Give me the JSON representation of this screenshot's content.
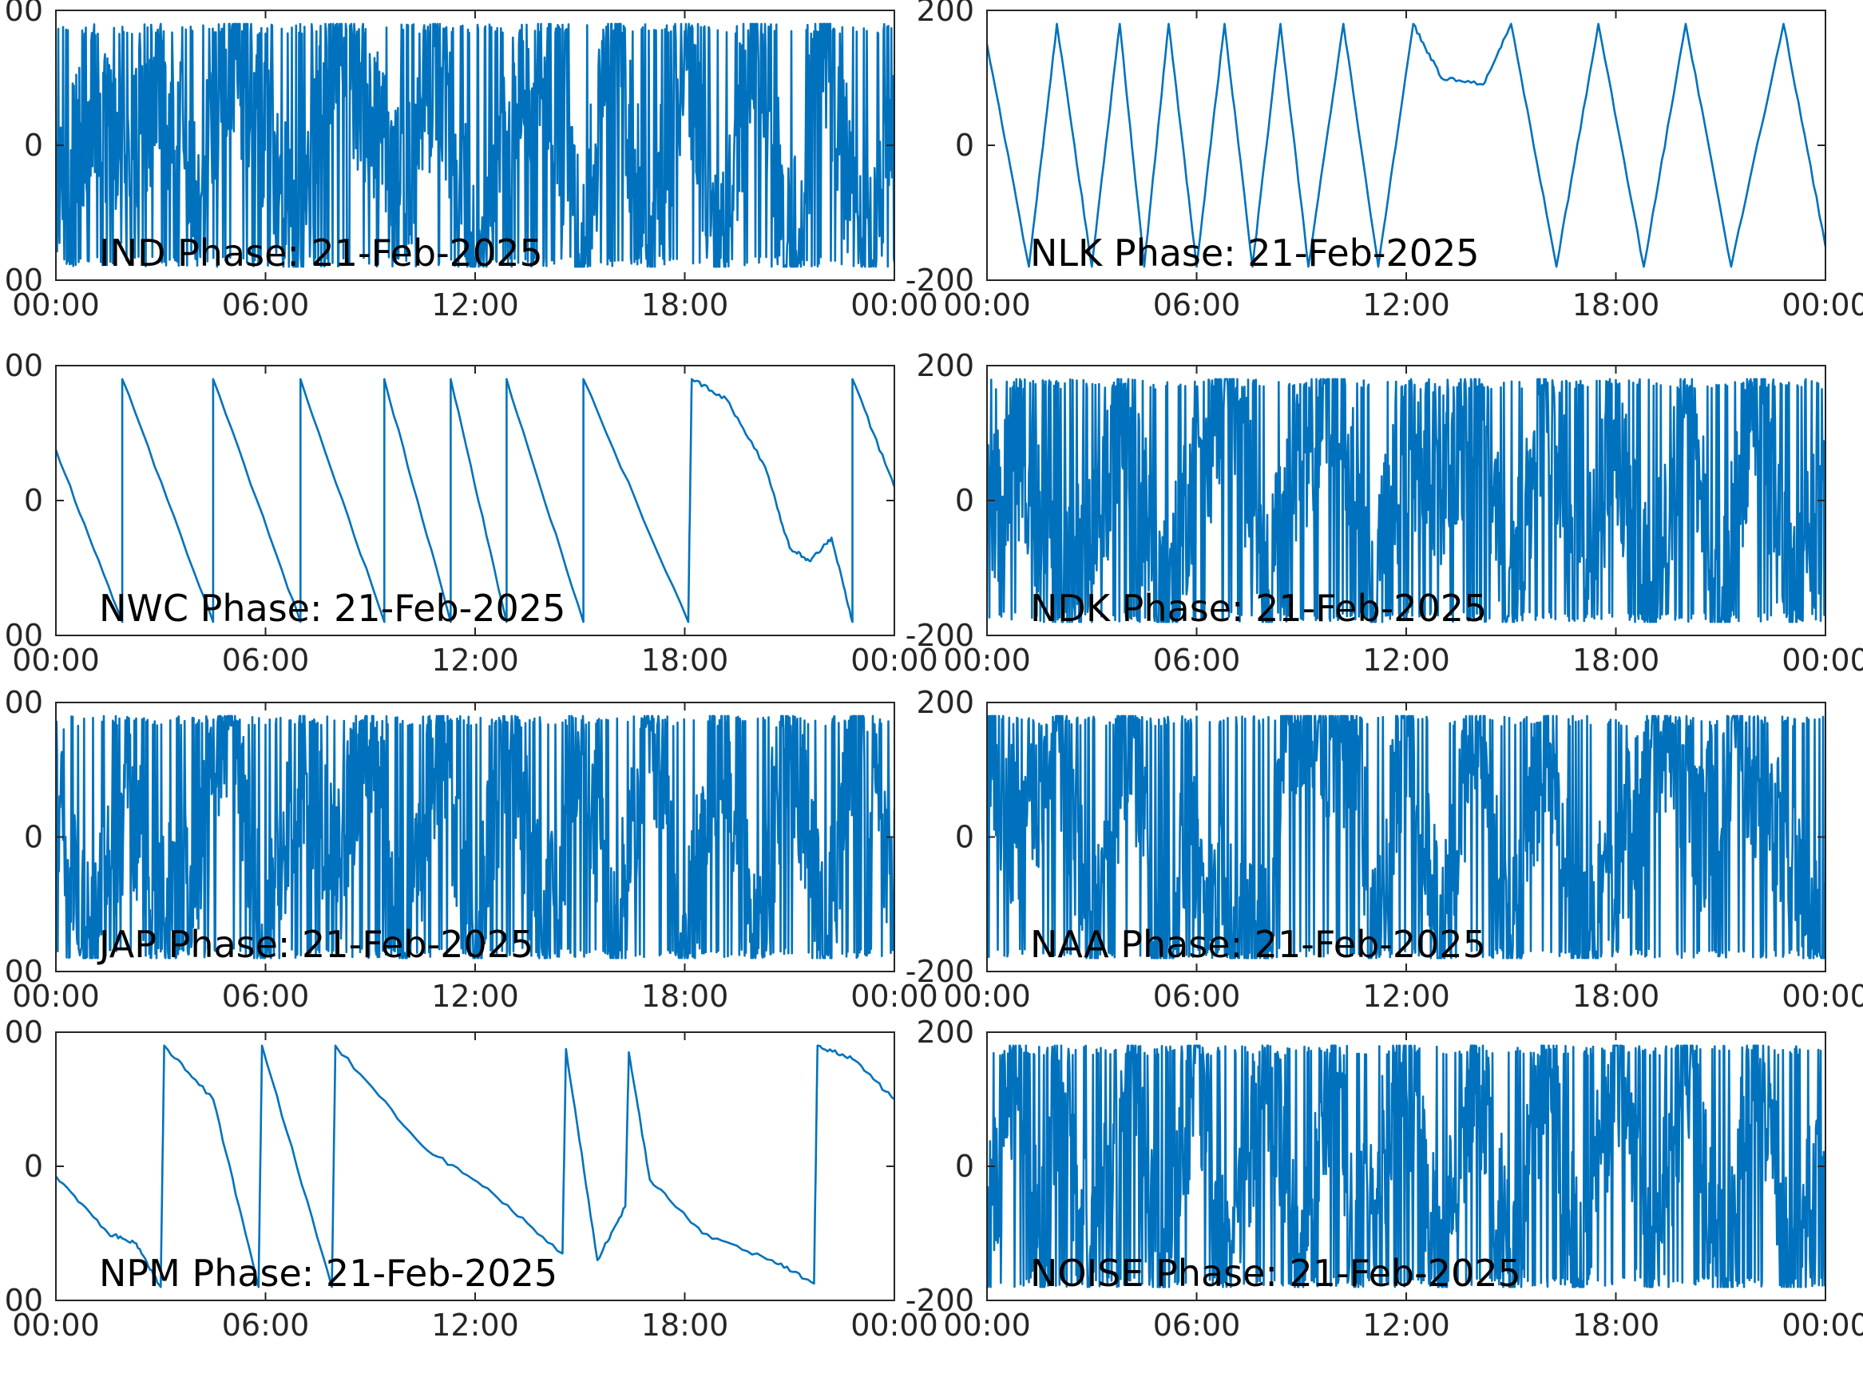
{
  "figure": {
    "line_color": "#0072BD",
    "axis_color": "#262626",
    "background": "#ffffff"
  },
  "chart_data": [
    {
      "type": "line",
      "title": "IND Phase: 21-Feb-2025",
      "x_tick_labels": [
        "00:00",
        "06:00",
        "12:00",
        "18:00",
        "00:00"
      ],
      "y_tick_labels": [
        "00",
        "0",
        "00"
      ],
      "xlim_hours": [
        0,
        24
      ],
      "ylim": [
        -200,
        200
      ],
      "series": [
        {
          "x_hours": [
            0,
            1,
            2,
            3,
            4,
            5,
            6,
            7,
            8,
            9,
            10,
            11,
            12,
            13,
            14,
            15,
            16,
            17,
            18,
            19,
            20,
            21,
            22,
            23,
            24
          ],
          "y": [
            -120,
            60,
            -40,
            100,
            -80,
            140,
            20,
            -150,
            170,
            40,
            -60,
            120,
            -170,
            30,
            150,
            -160,
            175,
            -175,
            160,
            -170,
            175,
            -165,
            170,
            -150,
            -20
          ]
        }
      ],
      "pattern": "noisy"
    },
    {
      "type": "line",
      "title": "NLK Phase: 21-Feb-2025",
      "x_tick_labels": [
        "00:00",
        "06:00",
        "12:00",
        "18:00",
        "00:00"
      ],
      "y_tick_labels": [
        "200",
        "0",
        "-200"
      ],
      "xlim_hours": [
        0,
        24
      ],
      "ylim": [
        -200,
        200
      ],
      "series": [
        {
          "x_hours": [
            0,
            1.2,
            2.0,
            3.0,
            3.8,
            4.5,
            5.2,
            6.0,
            6.8,
            7.6,
            8.4,
            9.2,
            10.2,
            11.2,
            12.2,
            13.0,
            14.2,
            15.0,
            16.3,
            17.5,
            18.8,
            20.0,
            21.3,
            22.8,
            24
          ],
          "y": [
            150,
            -180,
            180,
            -180,
            180,
            -180,
            180,
            -180,
            180,
            -180,
            180,
            -180,
            180,
            -180,
            180,
            100,
            90,
            180,
            -180,
            180,
            -180,
            180,
            -180,
            180,
            -150
          ]
        }
      ],
      "pattern": "sawtooth"
    },
    {
      "type": "line",
      "title": "NWC Phase: 21-Feb-2025",
      "x_tick_labels": [
        "00:00",
        "06:00",
        "12:00",
        "18:00",
        "00:00"
      ],
      "y_tick_labels": [
        "00",
        "0",
        "00"
      ],
      "xlim_hours": [
        0,
        24
      ],
      "ylim": [
        -200,
        200
      ],
      "series": [
        {
          "x_hours": [
            0,
            1.9,
            1.9,
            4.5,
            4.5,
            7.0,
            7.0,
            9.4,
            9.4,
            11.3,
            11.3,
            12.9,
            12.9,
            15.1,
            15.1,
            18.1,
            18.2,
            19.2,
            20.3,
            21.0,
            21.6,
            22.2,
            22.8,
            22.8,
            24
          ],
          "y": [
            75,
            -180,
            180,
            -180,
            180,
            -180,
            180,
            -180,
            180,
            -180,
            180,
            -180,
            180,
            -180,
            180,
            -180,
            180,
            150,
            50,
            -70,
            -90,
            -55,
            -180,
            180,
            20
          ]
        }
      ],
      "pattern": "sawtooth"
    },
    {
      "type": "line",
      "title": "NDK Phase: 21-Feb-2025",
      "x_tick_labels": [
        "00:00",
        "06:00",
        "12:00",
        "18:00",
        "00:00"
      ],
      "y_tick_labels": [
        "200",
        "0",
        "-200"
      ],
      "xlim_hours": [
        0,
        24
      ],
      "ylim": [
        -200,
        200
      ],
      "series": [
        {
          "x_hours": [
            0,
            1,
            2,
            3,
            4,
            5,
            6,
            7,
            8,
            9,
            10,
            11,
            12,
            13,
            14,
            15,
            16,
            17,
            18,
            19,
            20,
            21,
            22,
            23,
            24
          ],
          "y": [
            -30,
            80,
            -150,
            -60,
            120,
            -170,
            40,
            170,
            -140,
            60,
            170,
            -170,
            100,
            30,
            140,
            -160,
            170,
            -120,
            90,
            -170,
            175,
            -175,
            170,
            -150,
            20
          ]
        }
      ],
      "pattern": "noisy"
    },
    {
      "type": "line",
      "title": "JAP Phase: 21-Feb-2025",
      "x_tick_labels": [
        "00:00",
        "06:00",
        "12:00",
        "18:00",
        "00:00"
      ],
      "y_tick_labels": [
        "00",
        "0",
        "00"
      ],
      "xlim_hours": [
        0,
        24
      ],
      "ylim": [
        -200,
        200
      ],
      "series": [
        {
          "x_hours": [
            0,
            1,
            2,
            3,
            4,
            5,
            6,
            7,
            8,
            9,
            10,
            11,
            12,
            13,
            14,
            15,
            16,
            17,
            18,
            19,
            20,
            21,
            22,
            23,
            24
          ],
          "y": [
            100,
            -170,
            60,
            -120,
            -30,
            170,
            -175,
            120,
            -60,
            175,
            -175,
            170,
            -170,
            175,
            -175,
            170,
            -170,
            175,
            -175,
            170,
            -170,
            175,
            -175,
            170,
            -60
          ]
        }
      ],
      "pattern": "noisy"
    },
    {
      "type": "line",
      "title": "NAA Phase: 21-Feb-2025",
      "x_tick_labels": [
        "00:00",
        "06:00",
        "12:00",
        "18:00",
        "00:00"
      ],
      "y_tick_labels": [
        "200",
        "0",
        "-200"
      ],
      "xlim_hours": [
        0,
        24
      ],
      "ylim": [
        -200,
        200
      ],
      "series": [
        {
          "x_hours": [
            0,
            1,
            2,
            3,
            4,
            5,
            5.8,
            6.5,
            7.2,
            8.0,
            8.5,
            9.5,
            10.3,
            10.6,
            11.0,
            12,
            13,
            14,
            15,
            16,
            17,
            19.5,
            20.5,
            21.5,
            24
          ],
          "y": [
            160,
            -40,
            170,
            -170,
            175,
            -175,
            10,
            -80,
            -150,
            -165,
            175,
            160,
            140,
            170,
            -170,
            175,
            -175,
            170,
            -170,
            175,
            -175,
            160,
            0,
            160,
            -170
          ]
        }
      ],
      "pattern": "noisy"
    },
    {
      "type": "line",
      "title": "NPM Phase: 21-Feb-2025",
      "x_tick_labels": [
        "00:00",
        "06:00",
        "12:00",
        "18:00",
        "00:00"
      ],
      "y_tick_labels": [
        "00",
        "0",
        "00"
      ],
      "xlim_hours": [
        0,
        24
      ],
      "ylim": [
        -200,
        200
      ],
      "series": [
        {
          "x_hours": [
            0,
            1.5,
            2.3,
            3.0,
            3.1,
            4.5,
            5.8,
            5.9,
            7.9,
            8.0,
            10.5,
            12.5,
            14.5,
            14.6,
            15.5,
            16.3,
            16.4,
            17.0,
            18.5,
            20.5,
            21.7,
            21.8,
            22.8,
            24
          ],
          "y": [
            -15,
            -100,
            -115,
            -180,
            180,
            100,
            -180,
            180,
            -180,
            180,
            30,
            -40,
            -130,
            175,
            -140,
            -60,
            170,
            -20,
            -100,
            -140,
            -175,
            180,
            160,
            100
          ]
        }
      ],
      "pattern": "sawtooth"
    },
    {
      "type": "line",
      "title": "NOISE Phase: 21-Feb-2025",
      "x_tick_labels": [
        "00:00",
        "06:00",
        "12:00",
        "18:00",
        "00:00"
      ],
      "y_tick_labels": [
        "200",
        "0",
        "-200"
      ],
      "xlim_hours": [
        0,
        24
      ],
      "ylim": [
        -200,
        200
      ],
      "series": [
        {
          "x_hours": [
            0,
            0.5,
            1.0,
            1.5,
            2,
            3,
            4,
            5,
            6,
            7,
            8,
            9,
            10,
            10.5,
            11,
            11.5,
            12,
            13,
            14,
            15,
            16,
            17,
            18,
            19,
            20,
            21,
            22,
            23,
            24
          ],
          "y": [
            -120,
            60,
            170,
            -170,
            120,
            -170,
            170,
            -170,
            170,
            -170,
            170,
            -170,
            170,
            -120,
            -60,
            60,
            160,
            -170,
            170,
            -170,
            175,
            -175,
            170,
            -170,
            175,
            -175,
            170,
            -170,
            30
          ]
        }
      ],
      "pattern": "noisy"
    }
  ]
}
